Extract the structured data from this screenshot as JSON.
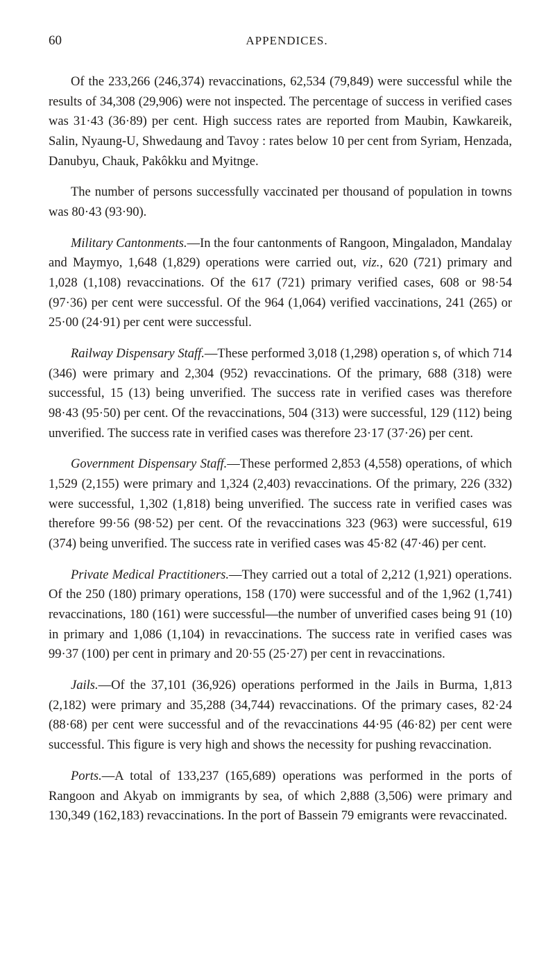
{
  "header": {
    "page_number": "60",
    "title": "APPENDICES."
  },
  "paragraphs": {
    "p1": "Of the 233,266 (246,374) revaccinations, 62,534 (79,849) were successful while the results of 34,308 (29,906) were not inspected. The percentage of success in verified cases was 31·43 (36·89) per cent. High success rates are reported from Maubin, Kawkareik, Salin, Nyaung-U, Shwedaung and Tavoy : rates below 10 per cent from Syriam, Henzada, Danubyu, Chauk, Pakôkku and Myitnge.",
    "p2": "The number of persons successfully vaccinated per thousand of population in towns was 80·43 (93·90).",
    "p3_lead": "Military Cantonments.",
    "p3_body": "—In the four cantonments of Rangoon, Mingaladon, Mandalay and Maymyo, 1,648 (1,829) operations were carried out, ",
    "p3_viz": "viz.",
    "p3_tail": ", 620 (721) primary and 1,028 (1,108) revaccinations. Of the 617 (721) primary verified cases, 608 or 98·54 (97·36) per cent were successful. Of the 964 (1,064) verified vaccinations, 241 (265) or 25·00 (24·91) per cent were successful.",
    "p4_lead": "Railway Dispensary Staff.",
    "p4_body": "—These performed 3,018 (1,298) operation s, of which 714 (346) were primary and 2,304 (952) revaccinations. Of the primary, 688 (318) were successful, 15 (13) being unverified. The success rate in verified cases was therefore 98·43 (95·50) per cent. Of the revaccinations, 504 (313) were successful, 129 (112) being unverified. The success rate in verified cases was therefore 23·17 (37·26) per cent.",
    "p5_lead": "Government Dispensary Staff.",
    "p5_body": "—These performed 2,853 (4,558) operations, of which 1,529 (2,155) were primary and 1,324 (2,403) revaccinations. Of the primary, 226 (332) were successful, 1,302 (1,818) being unverified. The success rate in verified cases was therefore 99·56 (98·52) per cent. Of the revaccinations 323 (963) were successful, 619 (374) being unverified. The success rate in verified cases was 45·82 (47·46) per cent.",
    "p6_lead": "Private Medical Practitioners.",
    "p6_body": "—They carried out a total of 2,212 (1,921) operations. Of the 250 (180) primary operations, 158 (170) were successful and of the 1,962 (1,741) revaccinations, 180 (161) were successful—the number of unverified cases being 91 (10) in primary and 1,086 (1,104) in revaccinations. The success rate in verified cases was 99·37 (100) per cent in primary and 20·55 (25·27) per cent in revaccinations.",
    "p7_lead": "Jails.",
    "p7_body": "—Of the 37,101 (36,926) operations performed in the Jails in Burma, 1,813 (2,182) were primary and 35,288 (34,744) revaccinations. Of the primary cases, 82·24 (88·68) per cent were successful and of the revaccinations 44·95 (46·82) per cent were successful. This figure is very high and shows the necessity for pushing revaccination.",
    "p8_lead": "Ports.",
    "p8_body": "—A total of 133,237 (165,689) operations was performed in the ports of Rangoon and Akyab on immigrants by sea, of which 2,888 (3,506) were primary and 130,349 (162,183) revaccinations. In the port of Bassein 79 emigrants were revaccinated."
  }
}
